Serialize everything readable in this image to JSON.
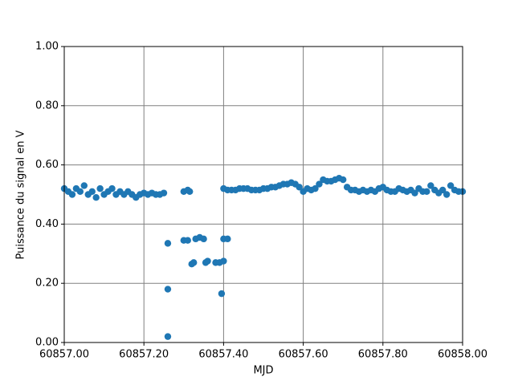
{
  "chart_data": {
    "type": "scatter",
    "x_label": "MJD",
    "y_label": "Puissance du signal en V",
    "color": "#1f77b4",
    "grid": true,
    "xlim": [
      60857.0,
      60858.0
    ],
    "xticks": [
      {
        "value": 60857.0,
        "label": "60857.00"
      },
      {
        "value": 60857.2,
        "label": "60857.20"
      },
      {
        "value": 60857.4,
        "label": "60857.40"
      },
      {
        "value": 60857.6,
        "label": "60857.60"
      },
      {
        "value": 60857.8,
        "label": "60857.80"
      },
      {
        "value": 60858.0,
        "label": "60858.00"
      }
    ],
    "ylim": [
      0,
      1
    ],
    "yticks": [
      {
        "value": 0,
        "label": "0.00"
      },
      {
        "value": 0.2,
        "label": "0.20"
      },
      {
        "value": 0.4,
        "label": "0.40"
      },
      {
        "value": 0.6,
        "label": "0.60"
      },
      {
        "value": 0.8,
        "label": "0.80"
      },
      {
        "value": 1,
        "label": "1.00"
      }
    ],
    "x": [
      60857.0,
      60857.01,
      60857.02,
      60857.03,
      60857.04,
      60857.05,
      60857.06,
      60857.07,
      60857.08,
      60857.09,
      60857.1,
      60857.11,
      60857.12,
      60857.13,
      60857.14,
      60857.15,
      60857.16,
      60857.17,
      60857.18,
      60857.19,
      60857.2,
      60857.21,
      60857.22,
      60857.23,
      60857.24,
      60857.25,
      60857.3,
      60857.31,
      60857.315,
      60857.26,
      60857.26,
      60857.26,
      60857.3,
      60857.31,
      60857.32,
      60857.325,
      60857.33,
      60857.34,
      60857.35,
      60857.355,
      60857.36,
      60857.38,
      60857.39,
      60857.395,
      60857.4,
      60857.4,
      60857.41,
      60857.4,
      60857.41,
      60857.42,
      60857.43,
      60857.44,
      60857.45,
      60857.46,
      60857.47,
      60857.48,
      60857.49,
      60857.5,
      60857.51,
      60857.52,
      60857.53,
      60857.54,
      60857.55,
      60857.56,
      60857.57,
      60857.58,
      60857.59,
      60857.6,
      60857.61,
      60857.62,
      60857.63,
      60857.64,
      60857.65,
      60857.66,
      60857.67,
      60857.68,
      60857.69,
      60857.7,
      60857.71,
      60857.72,
      60857.73,
      60857.74,
      60857.75,
      60857.76,
      60857.77,
      60857.78,
      60857.79,
      60857.8,
      60857.81,
      60857.82,
      60857.83,
      60857.84,
      60857.85,
      60857.86,
      60857.87,
      60857.88,
      60857.89,
      60857.9,
      60857.91,
      60857.92,
      60857.93,
      60857.94,
      60857.95,
      60857.96,
      60857.97,
      60857.98,
      60857.99,
      60858.0
    ],
    "values": [
      0.52,
      0.51,
      0.5,
      0.52,
      0.51,
      0.53,
      0.5,
      0.51,
      0.49,
      0.52,
      0.5,
      0.51,
      0.52,
      0.5,
      0.51,
      0.5,
      0.51,
      0.5,
      0.49,
      0.5,
      0.505,
      0.5,
      0.505,
      0.5,
      0.5,
      0.505,
      0.51,
      0.515,
      0.51,
      0.335,
      0.18,
      0.02,
      0.345,
      0.345,
      0.265,
      0.27,
      0.35,
      0.355,
      0.35,
      0.27,
      0.275,
      0.27,
      0.27,
      0.165,
      0.275,
      0.35,
      0.35,
      0.52,
      0.515,
      0.515,
      0.515,
      0.52,
      0.52,
      0.52,
      0.515,
      0.515,
      0.515,
      0.52,
      0.52,
      0.525,
      0.525,
      0.53,
      0.535,
      0.535,
      0.54,
      0.535,
      0.525,
      0.51,
      0.52,
      0.515,
      0.52,
      0.535,
      0.55,
      0.545,
      0.545,
      0.55,
      0.555,
      0.55,
      0.525,
      0.515,
      0.515,
      0.51,
      0.515,
      0.51,
      0.515,
      0.51,
      0.52,
      0.525,
      0.515,
      0.51,
      0.51,
      0.52,
      0.515,
      0.51,
      0.515,
      0.505,
      0.52,
      0.51,
      0.51,
      0.53,
      0.515,
      0.505,
      0.515,
      0.5,
      0.53,
      0.515,
      0.51,
      0.51
    ]
  }
}
